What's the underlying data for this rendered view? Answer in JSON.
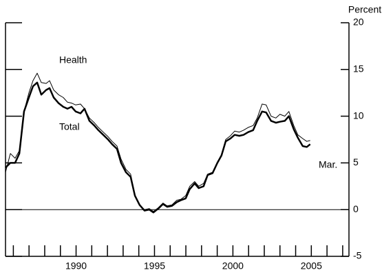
{
  "chart_data": {
    "type": "line",
    "y_axis_label": "Percent",
    "annotations": [
      "Health",
      "Total",
      "Mar."
    ],
    "x": [
      1985.5,
      1985.81,
      1986.11,
      1986.38,
      1986.68,
      1986.99,
      1987.25,
      1987.52,
      1987.78,
      1988.09,
      1988.31,
      1988.57,
      1988.88,
      1989.18,
      1989.45,
      1989.71,
      1989.97,
      1990.28,
      1990.54,
      1990.85,
      1991.16,
      1991.42,
      1991.73,
      1992.04,
      1992.3,
      1992.61,
      1992.87,
      1993.18,
      1993.48,
      1993.75,
      1994.05,
      1994.36,
      1994.67,
      1994.93,
      1995.24,
      1995.54,
      1995.81,
      1996.11,
      1996.42,
      1996.68,
      1996.99,
      1997.25,
      1997.56,
      1997.82,
      1998.13,
      1998.39,
      1998.7,
      1999.01,
      1999.27,
      1999.54,
      1999.84,
      2000.11,
      2000.41,
      2000.68,
      2000.98,
      2001.29,
      2001.55,
      2001.86,
      2002.12,
      2002.43,
      2002.74,
      2003.0,
      2003.31,
      2003.57,
      2003.88,
      2004.14,
      2004.45,
      2004.71,
      2004.93
    ],
    "series": [
      {
        "name": "Health",
        "color": "#000000",
        "width": 1,
        "values": [
          4,
          6,
          5.5,
          6.3,
          10.5,
          12.5,
          13.8,
          14.6,
          13.6,
          13.5,
          13.8,
          12.8,
          12.3,
          12,
          11.5,
          11.4,
          11.2,
          11.3,
          10.8,
          9.8,
          9.3,
          8.8,
          8.3,
          7.8,
          7.3,
          6.8,
          5.4,
          4.3,
          3.8,
          1.5,
          0.5,
          0,
          0.1,
          -0.2,
          0.2,
          0.7,
          0.4,
          0.5,
          1,
          1.1,
          1.5,
          2.5,
          3,
          2.5,
          2.8,
          3.8,
          4,
          5,
          5.9,
          7.5,
          7.9,
          8.4,
          8.3,
          8.5,
          8.8,
          9,
          9.8,
          11.3,
          11.2,
          10,
          9.8,
          10.2,
          10,
          10.5,
          9,
          8,
          7.6,
          7.3,
          7.4
        ]
      },
      {
        "name": "Total",
        "color": "#000000",
        "width": 2.5,
        "values": [
          4.5,
          5,
          5,
          6,
          10.5,
          12,
          13.2,
          13.6,
          12.3,
          12.8,
          13,
          12,
          11.4,
          11,
          10.8,
          11,
          10.5,
          10.3,
          10.8,
          9.5,
          9,
          8.5,
          8,
          7.5,
          7,
          6.5,
          5,
          4,
          3.5,
          1.5,
          0.5,
          -0.1,
          0,
          -0.3,
          0.1,
          0.6,
          0.3,
          0.4,
          0.8,
          1,
          1.2,
          2.2,
          2.8,
          2.3,
          2.5,
          3.7,
          3.9,
          5,
          5.8,
          7.3,
          7.6,
          8,
          7.9,
          8,
          8.3,
          8.5,
          9.5,
          10.5,
          10.4,
          9.5,
          9.3,
          9.4,
          9.5,
          10,
          8.6,
          7.7,
          6.8,
          6.7,
          7.0
        ]
      }
    ],
    "xlim": [
      1985.5,
      2007.4
    ],
    "xticks": [
      1990,
      1995,
      2000,
      2005
    ],
    "minor_xticks": [
      1986,
      1987,
      1988,
      1989,
      1990,
      1991,
      1992,
      1993,
      1994,
      1995,
      1996,
      1997,
      1998,
      1999,
      2000,
      2001,
      2002,
      2003,
      2004,
      2005,
      2006,
      2007
    ],
    "ylim": [
      -5,
      20
    ],
    "yticks": [
      -5,
      0,
      5,
      10,
      15,
      20
    ],
    "zero_line": true
  }
}
